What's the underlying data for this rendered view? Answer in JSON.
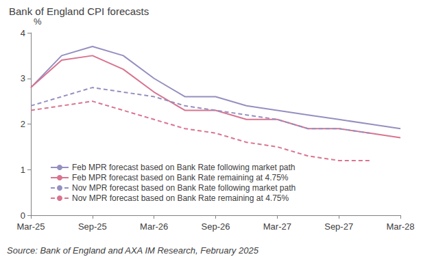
{
  "chart_data": {
    "type": "line",
    "title": "Bank of England CPI forecasts",
    "y_label": "%",
    "annotations": [
      "Source: Bank of England and AXA IM Research, February 2025"
    ],
    "categories": [
      "Mar-25",
      null,
      "Sep-25",
      null,
      "Mar-26",
      null,
      "Sep-26",
      null,
      "Mar-27",
      null,
      "Sep-27",
      null,
      "Mar-28"
    ],
    "series": [
      {
        "name": "Feb MPR forecast based on Bank Rate following market path",
        "color": "#958fc0",
        "line_style": "solid",
        "values": [
          2.8,
          3.5,
          3.7,
          3.5,
          3.0,
          2.6,
          2.6,
          2.4,
          2.3,
          2.2,
          2.1,
          2.0,
          1.9
        ]
      },
      {
        "name": "Feb MPR forecast based on Bank Rate remaining at 4.75%",
        "color": "#d9738f",
        "line_style": "solid",
        "values": [
          2.8,
          3.4,
          3.5,
          3.2,
          2.7,
          2.3,
          2.3,
          2.1,
          2.1,
          1.9,
          1.9,
          1.8,
          1.7
        ]
      },
      {
        "name": "Nov MPR forecast based on Bank Rate following market path",
        "color": "#958fc0",
        "line_style": "dashed",
        "values": [
          2.4,
          2.6,
          2.8,
          2.7,
          2.6,
          2.4,
          2.3,
          2.2,
          2.1,
          1.9,
          1.9,
          1.8,
          null
        ]
      },
      {
        "name": "Nov MPR forecast based on Bank Rate remaining at 4.75%",
        "color": "#d9738f",
        "line_style": "dashed",
        "values": [
          2.3,
          2.4,
          2.5,
          2.3,
          2.1,
          1.9,
          1.8,
          1.6,
          1.5,
          1.3,
          1.2,
          1.2,
          null
        ]
      }
    ],
    "ylim": [
      0,
      4
    ],
    "yticks": [
      0,
      1,
      2,
      3,
      4
    ],
    "grid": false,
    "legend": "lower left",
    "marker": "none"
  }
}
